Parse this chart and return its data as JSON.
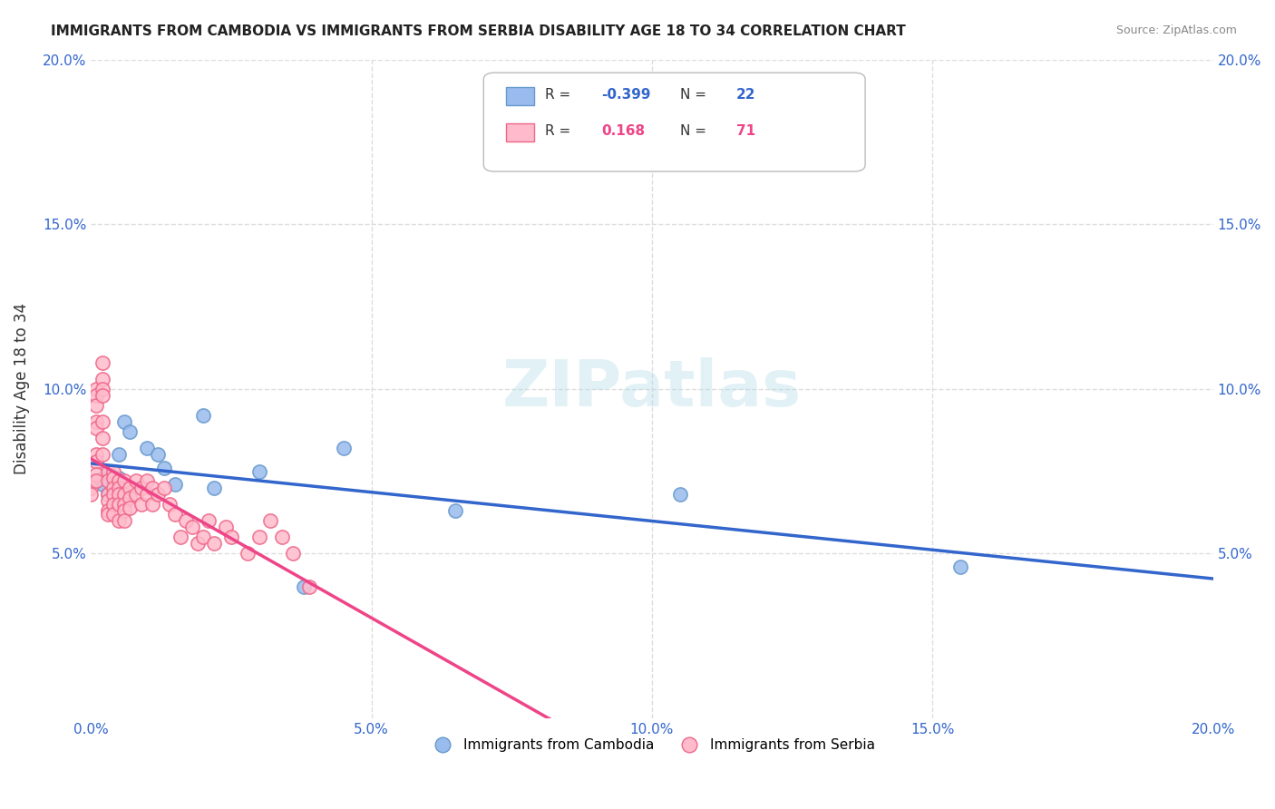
{
  "title": "IMMIGRANTS FROM CAMBODIA VS IMMIGRANTS FROM SERBIA DISABILITY AGE 18 TO 34 CORRELATION CHART",
  "source": "Source: ZipAtlas.com",
  "xlabel": "",
  "ylabel": "Disability Age 18 to 34",
  "xlim": [
    0.0,
    0.2
  ],
  "ylim": [
    0.0,
    0.2
  ],
  "xticks": [
    0.0,
    0.05,
    0.1,
    0.15,
    0.2
  ],
  "yticks": [
    0.0,
    0.05,
    0.1,
    0.15,
    0.2
  ],
  "xtick_labels": [
    "0.0%",
    "5.0%",
    "10.0%",
    "15.0%",
    "20.0%"
  ],
  "ytick_labels": [
    "",
    "5.0%",
    "10.0%",
    "15.0%",
    "20.0%"
  ],
  "series": [
    {
      "name": "Immigrants from Cambodia",
      "color": "#99bbee",
      "border_color": "#6699cc",
      "R": -0.399,
      "N": 22,
      "x": [
        0.001,
        0.002,
        0.002,
        0.003,
        0.003,
        0.004,
        0.005,
        0.005,
        0.006,
        0.007,
        0.01,
        0.012,
        0.013,
        0.015,
        0.02,
        0.022,
        0.03,
        0.038,
        0.045,
        0.065,
        0.105,
        0.155
      ],
      "y": [
        0.072,
        0.073,
        0.071,
        0.075,
        0.068,
        0.069,
        0.073,
        0.08,
        0.09,
        0.087,
        0.082,
        0.08,
        0.076,
        0.071,
        0.092,
        0.07,
        0.075,
        0.04,
        0.082,
        0.063,
        0.068,
        0.046
      ]
    },
    {
      "name": "Immigrants from Serbia",
      "color": "#ffbbcc",
      "border_color": "#ee6688",
      "R": 0.168,
      "N": 71,
      "x": [
        0.0,
        0.0,
        0.0,
        0.001,
        0.001,
        0.001,
        0.001,
        0.001,
        0.001,
        0.001,
        0.001,
        0.001,
        0.002,
        0.002,
        0.002,
        0.002,
        0.002,
        0.002,
        0.002,
        0.003,
        0.003,
        0.003,
        0.003,
        0.003,
        0.003,
        0.004,
        0.004,
        0.004,
        0.004,
        0.004,
        0.004,
        0.005,
        0.005,
        0.005,
        0.005,
        0.005,
        0.006,
        0.006,
        0.006,
        0.006,
        0.006,
        0.007,
        0.007,
        0.007,
        0.008,
        0.008,
        0.009,
        0.009,
        0.01,
        0.01,
        0.011,
        0.011,
        0.012,
        0.013,
        0.014,
        0.015,
        0.016,
        0.017,
        0.018,
        0.019,
        0.02,
        0.021,
        0.022,
        0.024,
        0.025,
        0.028,
        0.03,
        0.032,
        0.034,
        0.036,
        0.039
      ],
      "y": [
        0.072,
        0.07,
        0.068,
        0.1,
        0.098,
        0.095,
        0.09,
        0.088,
        0.08,
        0.078,
        0.074,
        0.072,
        0.108,
        0.103,
        0.1,
        0.098,
        0.09,
        0.085,
        0.08,
        0.075,
        0.072,
        0.068,
        0.066,
        0.063,
        0.062,
        0.075,
        0.073,
        0.07,
        0.068,
        0.065,
        0.062,
        0.072,
        0.07,
        0.068,
        0.065,
        0.06,
        0.072,
        0.068,
        0.065,
        0.063,
        0.06,
        0.07,
        0.067,
        0.064,
        0.072,
        0.068,
        0.07,
        0.065,
        0.072,
        0.068,
        0.07,
        0.065,
        0.068,
        0.07,
        0.065,
        0.062,
        0.055,
        0.06,
        0.058,
        0.053,
        0.055,
        0.06,
        0.053,
        0.058,
        0.055,
        0.05,
        0.055,
        0.06,
        0.055,
        0.05,
        0.04
      ]
    }
  ],
  "watermark": "ZIPatlas",
  "legend_title_color_blue": "#4477cc",
  "legend_title_color_pink": "#ee4477",
  "axis_label_color": "#3366cc",
  "grid_color": "#dddddd",
  "background_color": "#ffffff"
}
